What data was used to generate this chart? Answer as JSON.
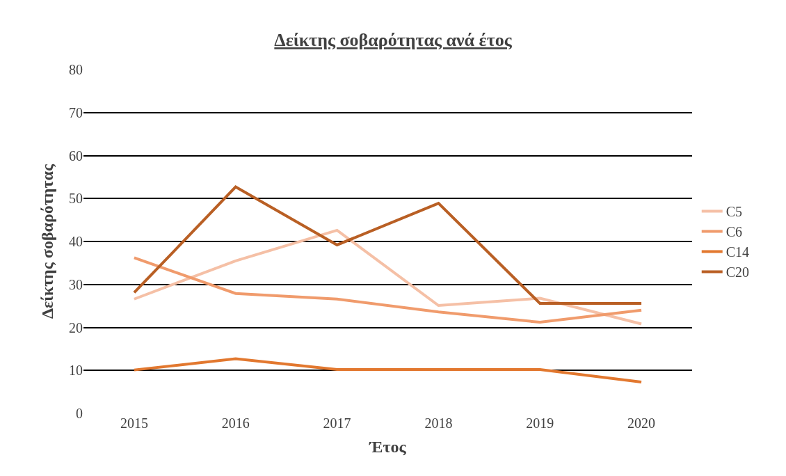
{
  "chart_data": {
    "type": "line",
    "title": "Δείκτης σοβαρότητας ανά έτος",
    "xlabel": "Έτος",
    "ylabel": "Δείκτης σοβαρότητας",
    "categories": [
      "2015",
      "2016",
      "2017",
      "2018",
      "2019",
      "2020"
    ],
    "series": [
      {
        "name": "C5",
        "color": "#f5c0a6",
        "values": [
          26.6,
          35.5,
          42.6,
          25.1,
          26.8,
          20.8
        ]
      },
      {
        "name": "C6",
        "color": "#f09b6c",
        "values": [
          36.2,
          27.9,
          26.6,
          23.6,
          21.2,
          24.0
        ]
      },
      {
        "name": "C14",
        "color": "#e2782f",
        "values": [
          10.1,
          12.7,
          10.2,
          10.2,
          10.2,
          7.3
        ]
      },
      {
        "name": "C20",
        "color": "#b95f24",
        "values": [
          28.1,
          52.7,
          39.2,
          48.9,
          25.6,
          25.6
        ]
      }
    ],
    "ylim": [
      0,
      80
    ],
    "yticks": [
      0,
      10,
      20,
      30,
      40,
      50,
      60,
      70,
      80
    ],
    "grid": "y",
    "legend": "right",
    "marker": "none",
    "line_style": "solid"
  }
}
